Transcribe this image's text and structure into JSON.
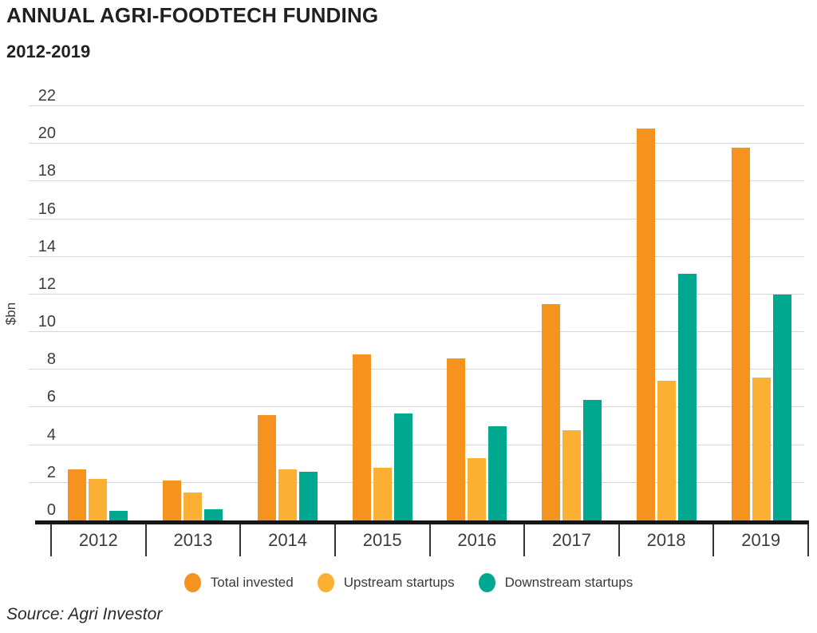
{
  "title": "ANNUAL AGRI-FOODTECH FUNDING",
  "subtitle": "2012-2019",
  "source": "Source: Agri Investor",
  "colors": {
    "orange": "#F6921E",
    "yellow": "#FBB034",
    "teal": "#00A88F",
    "gridline": "#D6D6D6",
    "axis": "#161616"
  },
  "chart_data": {
    "type": "bar",
    "title": "ANNUAL AGRI-FOODTECH FUNDING 2012-2019",
    "categories": [
      "2012",
      "2013",
      "2014",
      "2015",
      "2016",
      "2017",
      "2018",
      "2019"
    ],
    "series": [
      {
        "name": "Total invested",
        "color_key": "orange",
        "values": [
          2.7,
          2.1,
          5.6,
          8.8,
          8.6,
          11.5,
          20.8,
          19.8
        ]
      },
      {
        "name": "Upstream startups",
        "color_key": "yellow",
        "values": [
          2.2,
          1.5,
          2.7,
          2.8,
          3.3,
          4.8,
          7.4,
          7.6
        ]
      },
      {
        "name": "Downstream startups",
        "color_key": "teal",
        "values": [
          0.5,
          0.6,
          2.6,
          5.7,
          5.0,
          6.4,
          13.1,
          12.0
        ]
      }
    ],
    "xlabel": "",
    "ylabel": "$bn",
    "ylim": [
      0,
      22
    ],
    "ytick_step": 2,
    "yticks": [
      0,
      2,
      4,
      6,
      8,
      10,
      12,
      14,
      16,
      18,
      20,
      22
    ],
    "grid": true,
    "legend_position": "bottom"
  }
}
